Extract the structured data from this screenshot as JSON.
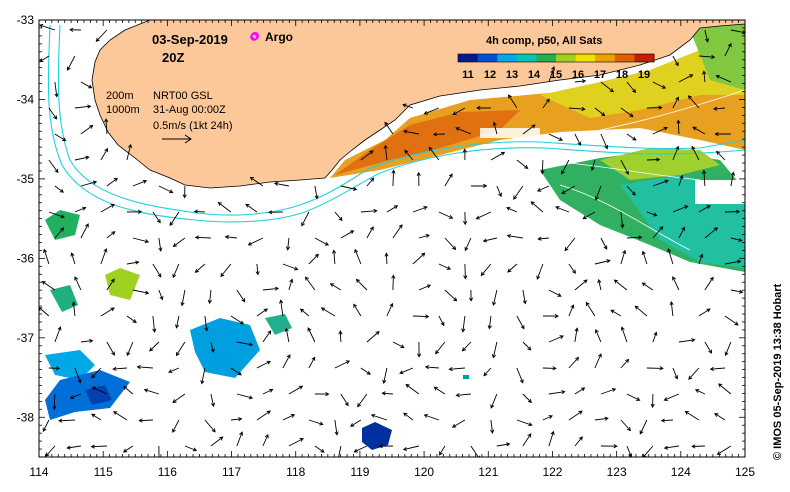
{
  "chart_data": {
    "type": "map",
    "title_date": "03-Sep-2019",
    "title_time": "20Z",
    "argo_label": "Argo",
    "argo_marker_color": "#ff00ff",
    "legend": {
      "title": "4h comp, p50, All Sats",
      "ticks": [
        "11",
        "12",
        "13",
        "14",
        "15",
        "16",
        "17",
        "18",
        "19"
      ],
      "colors": [
        "#001a8c",
        "#0050d8",
        "#00a8e8",
        "#00c8b0",
        "#20b050",
        "#a0d020",
        "#f0e000",
        "#f0a000",
        "#e06000",
        "#c02000"
      ]
    },
    "info": {
      "contour_1": "200m",
      "contour_2": "1000m",
      "product": "NRT00 GSL",
      "product_date": "31-Aug 00:00Z",
      "scale": "0.5m/s (1kt 24h)"
    },
    "x_ticks": [
      "114",
      "115",
      "116",
      "117",
      "118",
      "119",
      "120",
      "121",
      "122",
      "123",
      "124",
      "125"
    ],
    "y_ticks": [
      "-33",
      "-34",
      "-35",
      "-36",
      "-37",
      "-38"
    ],
    "xlim": [
      114,
      125
    ],
    "ylim": [
      -38.5,
      -33
    ],
    "land_color": "#fcc89a",
    "copyright": "© IMOS 05-Sep-2019 13:38 Hobart"
  }
}
